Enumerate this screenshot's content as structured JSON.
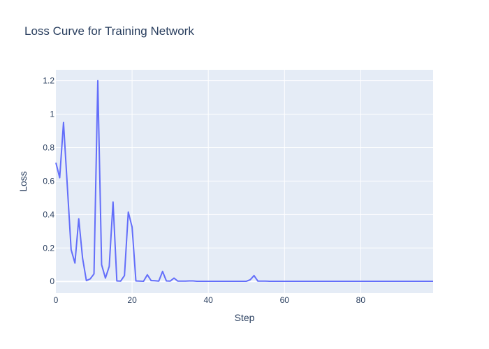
{
  "chart_data": {
    "type": "line",
    "title": "Loss Curve for Training Network",
    "xlabel": "Step",
    "ylabel": "Loss",
    "xlim": [
      0,
      99
    ],
    "ylim": [
      -0.07,
      1.265
    ],
    "x_ticks": [
      0,
      20,
      40,
      60,
      80
    ],
    "x_tick_labels": [
      "0",
      "20",
      "40",
      "60",
      "80"
    ],
    "y_ticks": [
      0,
      0.2,
      0.4,
      0.6,
      0.8,
      1.0,
      1.2
    ],
    "y_tick_labels": [
      "0",
      "0.2",
      "0.4",
      "0.6",
      "0.8",
      "1",
      "1.2"
    ],
    "grid": true,
    "colors": {
      "line": "#636efa",
      "plot_bg": "#e5ecf6",
      "grid": "#ffffff",
      "text": "#2a3f5f"
    },
    "series": [
      {
        "x": [
          0,
          1,
          2,
          3,
          4,
          5,
          6,
          7,
          8,
          9,
          10,
          11,
          12,
          13,
          14,
          15,
          16,
          17,
          18,
          19,
          20,
          21,
          22,
          23,
          24,
          25,
          26,
          27,
          28,
          29,
          30,
          31,
          32,
          33,
          34,
          35,
          36,
          37,
          38,
          39,
          40,
          41,
          42,
          43,
          44,
          45,
          46,
          47,
          48,
          49,
          50,
          51,
          52,
          53,
          54,
          55,
          56,
          57,
          58,
          59,
          60,
          61,
          62,
          63,
          64,
          65,
          66,
          67,
          68,
          69,
          70,
          71,
          72,
          73,
          74,
          75,
          76,
          77,
          78,
          79,
          80,
          81,
          82,
          83,
          84,
          85,
          86,
          87,
          88,
          89,
          90,
          91,
          92,
          93,
          94,
          95,
          96,
          97,
          98,
          99
        ],
        "values": [
          0.71,
          0.62,
          0.95,
          0.57,
          0.19,
          0.11,
          0.375,
          0.14,
          0.005,
          0.015,
          0.045,
          1.2,
          0.1,
          0.02,
          0.09,
          0.475,
          0.003,
          0.002,
          0.035,
          0.415,
          0.325,
          0.003,
          0.002,
          0.001,
          0.04,
          0.005,
          0.004,
          0.002,
          0.06,
          0.003,
          0.002,
          0.02,
          0.002,
          0.002,
          0.002,
          0.003,
          0.003,
          0.001,
          0.001,
          0.001,
          0.001,
          0.001,
          0.001,
          0.001,
          0.001,
          0.001,
          0.001,
          0.001,
          0.001,
          0.001,
          0.001,
          0.01,
          0.035,
          0.002,
          0.002,
          0.002,
          0.001,
          0.001,
          0.001,
          0.001,
          0.001,
          0.001,
          0.001,
          0.001,
          0.001,
          0.001,
          0.001,
          0.001,
          0.001,
          0.001,
          0.001,
          0.001,
          0.001,
          0.001,
          0.001,
          0.001,
          0.001,
          0.001,
          0.001,
          0.001,
          0.001,
          0.001,
          0.001,
          0.001,
          0.001,
          0.001,
          0.001,
          0.001,
          0.001,
          0.001,
          0.001,
          0.001,
          0.001,
          0.001,
          0.001,
          0.001,
          0.001,
          0.001,
          0.001,
          0.001
        ]
      }
    ]
  }
}
